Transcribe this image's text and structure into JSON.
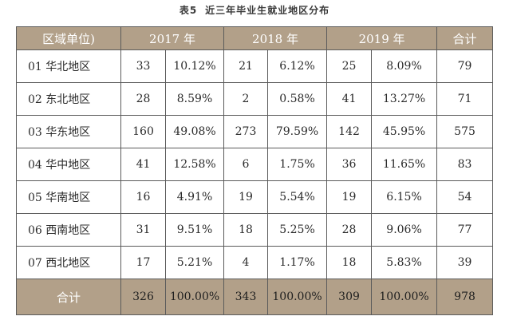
{
  "caption": {
    "number": "表5",
    "title": "近三年毕业生就业地区分布"
  },
  "header": {
    "region": "区域单位)",
    "y2017": "2017 年",
    "y2018": "2018 年",
    "y2019": "2019 年",
    "total": "合计"
  },
  "rows": [
    {
      "region": "01 华北地区",
      "n2017": "33",
      "p2017": "10.12%",
      "n2018": "21",
      "p2018": "6.12%",
      "n2019": "25",
      "p2019": "8.09%",
      "total": "79"
    },
    {
      "region": "02 东北地区",
      "n2017": "28",
      "p2017": "8.59%",
      "n2018": "2",
      "p2018": "0.58%",
      "n2019": "41",
      "p2019": "13.27%",
      "total": "71"
    },
    {
      "region": "03 华东地区",
      "n2017": "160",
      "p2017": "49.08%",
      "n2018": "273",
      "p2018": "79.59%",
      "n2019": "142",
      "p2019": "45.95%",
      "total": "575"
    },
    {
      "region": "04 华中地区",
      "n2017": "41",
      "p2017": "12.58%",
      "n2018": "6",
      "p2018": "1.75%",
      "n2019": "36",
      "p2019": "11.65%",
      "total": "83"
    },
    {
      "region": "05 华南地区",
      "n2017": "16",
      "p2017": "4.91%",
      "n2018": "19",
      "p2018": "5.54%",
      "n2019": "19",
      "p2019": "6.15%",
      "total": "54"
    },
    {
      "region": "06 西南地区",
      "n2017": "31",
      "p2017": "9.51%",
      "n2018": "18",
      "p2018": "5.25%",
      "n2019": "28",
      "p2019": "9.06%",
      "total": "77"
    },
    {
      "region": "07 西北地区",
      "n2017": "17",
      "p2017": "5.21%",
      "n2018": "4",
      "p2018": "1.17%",
      "n2019": "18",
      "p2019": "5.83%",
      "total": "39"
    }
  ],
  "footer": {
    "label": "合计",
    "n2017": "326",
    "p2017": "100.00%",
    "n2018": "343",
    "p2018": "100.00%",
    "n2019": "309",
    "p2019": "100.00%",
    "total": "978"
  },
  "colors": {
    "header_bg": "#b2a089",
    "border": "#5b5b5b"
  }
}
